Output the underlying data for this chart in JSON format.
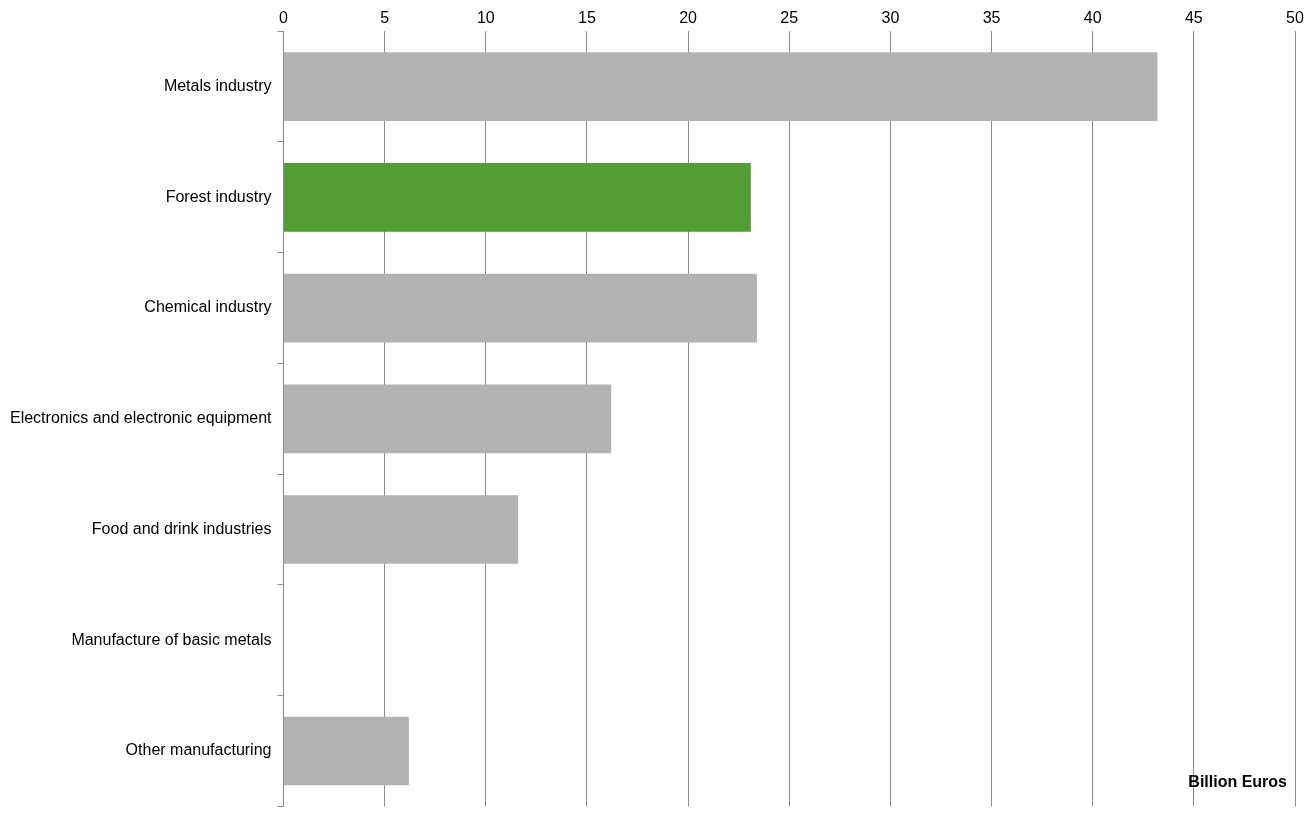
{
  "chart_data": {
    "type": "bar",
    "orientation": "horizontal",
    "xlabel": "Billion Euros",
    "categories": [
      "Metals industry",
      "Forest industry",
      "Chemical industry",
      "Electronics and electronic equipment",
      "Food and drink industries",
      "Manufacture of basic metals",
      "Other manufacturing"
    ],
    "values": [
      43.2,
      23.1,
      23.4,
      16.2,
      11.6,
      null,
      6.2
    ],
    "colors": [
      "#b2b2b2",
      "#529e33",
      "#b2b2b2",
      "#b2b2b2",
      "#b2b2b2",
      "#b2b2b2",
      "#b2b2b2"
    ],
    "xlim": [
      0,
      50
    ],
    "xticks": [
      0,
      5,
      10,
      15,
      20,
      25,
      30,
      35,
      40,
      45,
      50
    ],
    "grid": "x",
    "legend": false
  }
}
